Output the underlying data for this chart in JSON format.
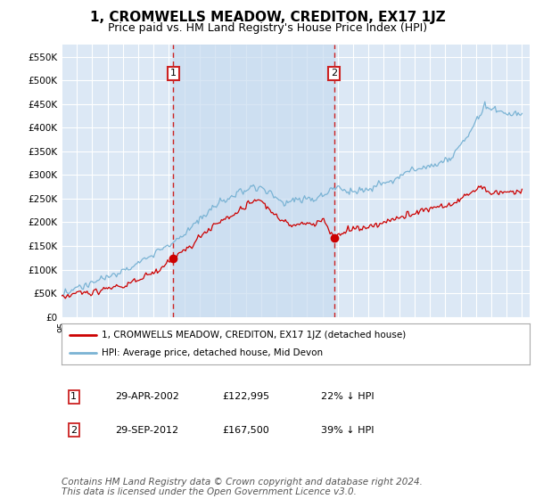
{
  "title": "1, CROMWELLS MEADOW, CREDITON, EX17 1JZ",
  "subtitle": "Price paid vs. HM Land Registry's House Price Index (HPI)",
  "title_fontsize": 11,
  "subtitle_fontsize": 9,
  "background_color": "#ffffff",
  "plot_bg_color": "#dce8f5",
  "grid_color": "#ffffff",
  "ylim": [
    0,
    575000
  ],
  "yticks": [
    0,
    50000,
    100000,
    150000,
    200000,
    250000,
    300000,
    350000,
    400000,
    450000,
    500000,
    550000
  ],
  "ytick_labels": [
    "£0",
    "£50K",
    "£100K",
    "£150K",
    "£200K",
    "£250K",
    "£300K",
    "£350K",
    "£400K",
    "£450K",
    "£500K",
    "£550K"
  ],
  "hpi_color": "#7ab3d4",
  "price_color": "#cc0000",
  "marker1_year": 2002.29,
  "marker2_year": 2012.75,
  "marker1_price": 122995,
  "marker2_price": 167500,
  "shade_color": "#c8dcf0",
  "legend_label1": "1, CROMWELLS MEADOW, CREDITON, EX17 1JZ (detached house)",
  "legend_label2": "HPI: Average price, detached house, Mid Devon",
  "table_rows": [
    [
      "1",
      "29-APR-2002",
      "£122,995",
      "22% ↓ HPI"
    ],
    [
      "2",
      "29-SEP-2012",
      "£167,500",
      "39% ↓ HPI"
    ]
  ],
  "footer": "Contains HM Land Registry data © Crown copyright and database right 2024.\nThis data is licensed under the Open Government Licence v3.0.",
  "footer_fontsize": 7.5,
  "start_year": 1995,
  "end_year": 2025
}
